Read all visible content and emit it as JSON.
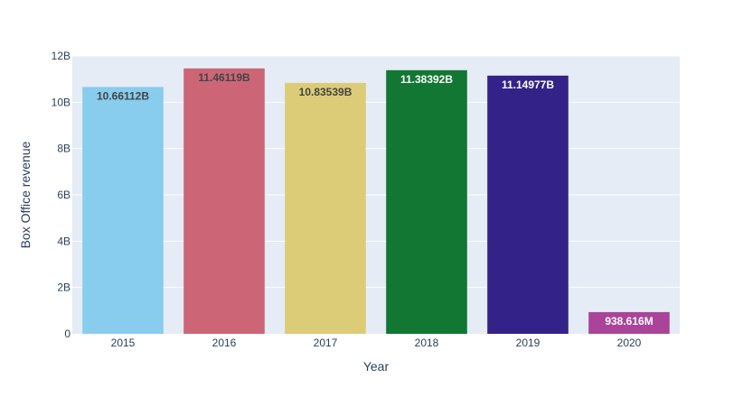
{
  "chart_data": {
    "type": "bar",
    "title": "",
    "xlabel": "Year",
    "ylabel": "Box Office revenue",
    "categories": [
      "2015",
      "2016",
      "2017",
      "2018",
      "2019",
      "2020"
    ],
    "values": [
      10661120000,
      11461190000,
      10835390000,
      11383920000,
      11149770000,
      938616000
    ],
    "data_labels": [
      "10.66112B",
      "11.46119B",
      "10.83539B",
      "11.38392B",
      "11.14977B",
      "938.616M"
    ],
    "bar_colors": [
      "#88CCEE",
      "#CC6677",
      "#DDCC77",
      "#117733",
      "#332288",
      "#AA4499"
    ],
    "label_colors": [
      "#444444",
      "#444444",
      "#444444",
      "#ffffff",
      "#ffffff",
      "#ffffff"
    ],
    "ylim": [
      0,
      12000000000
    ],
    "yticks": [
      0,
      2000000000,
      4000000000,
      6000000000,
      8000000000,
      10000000000,
      12000000000
    ],
    "ytick_labels": [
      "0",
      "2B",
      "4B",
      "6B",
      "8B",
      "10B",
      "12B"
    ],
    "grid": true,
    "plot_bg": "#E5ECF6",
    "grid_color": "#ffffff",
    "text_color": "#2a3f5f"
  }
}
